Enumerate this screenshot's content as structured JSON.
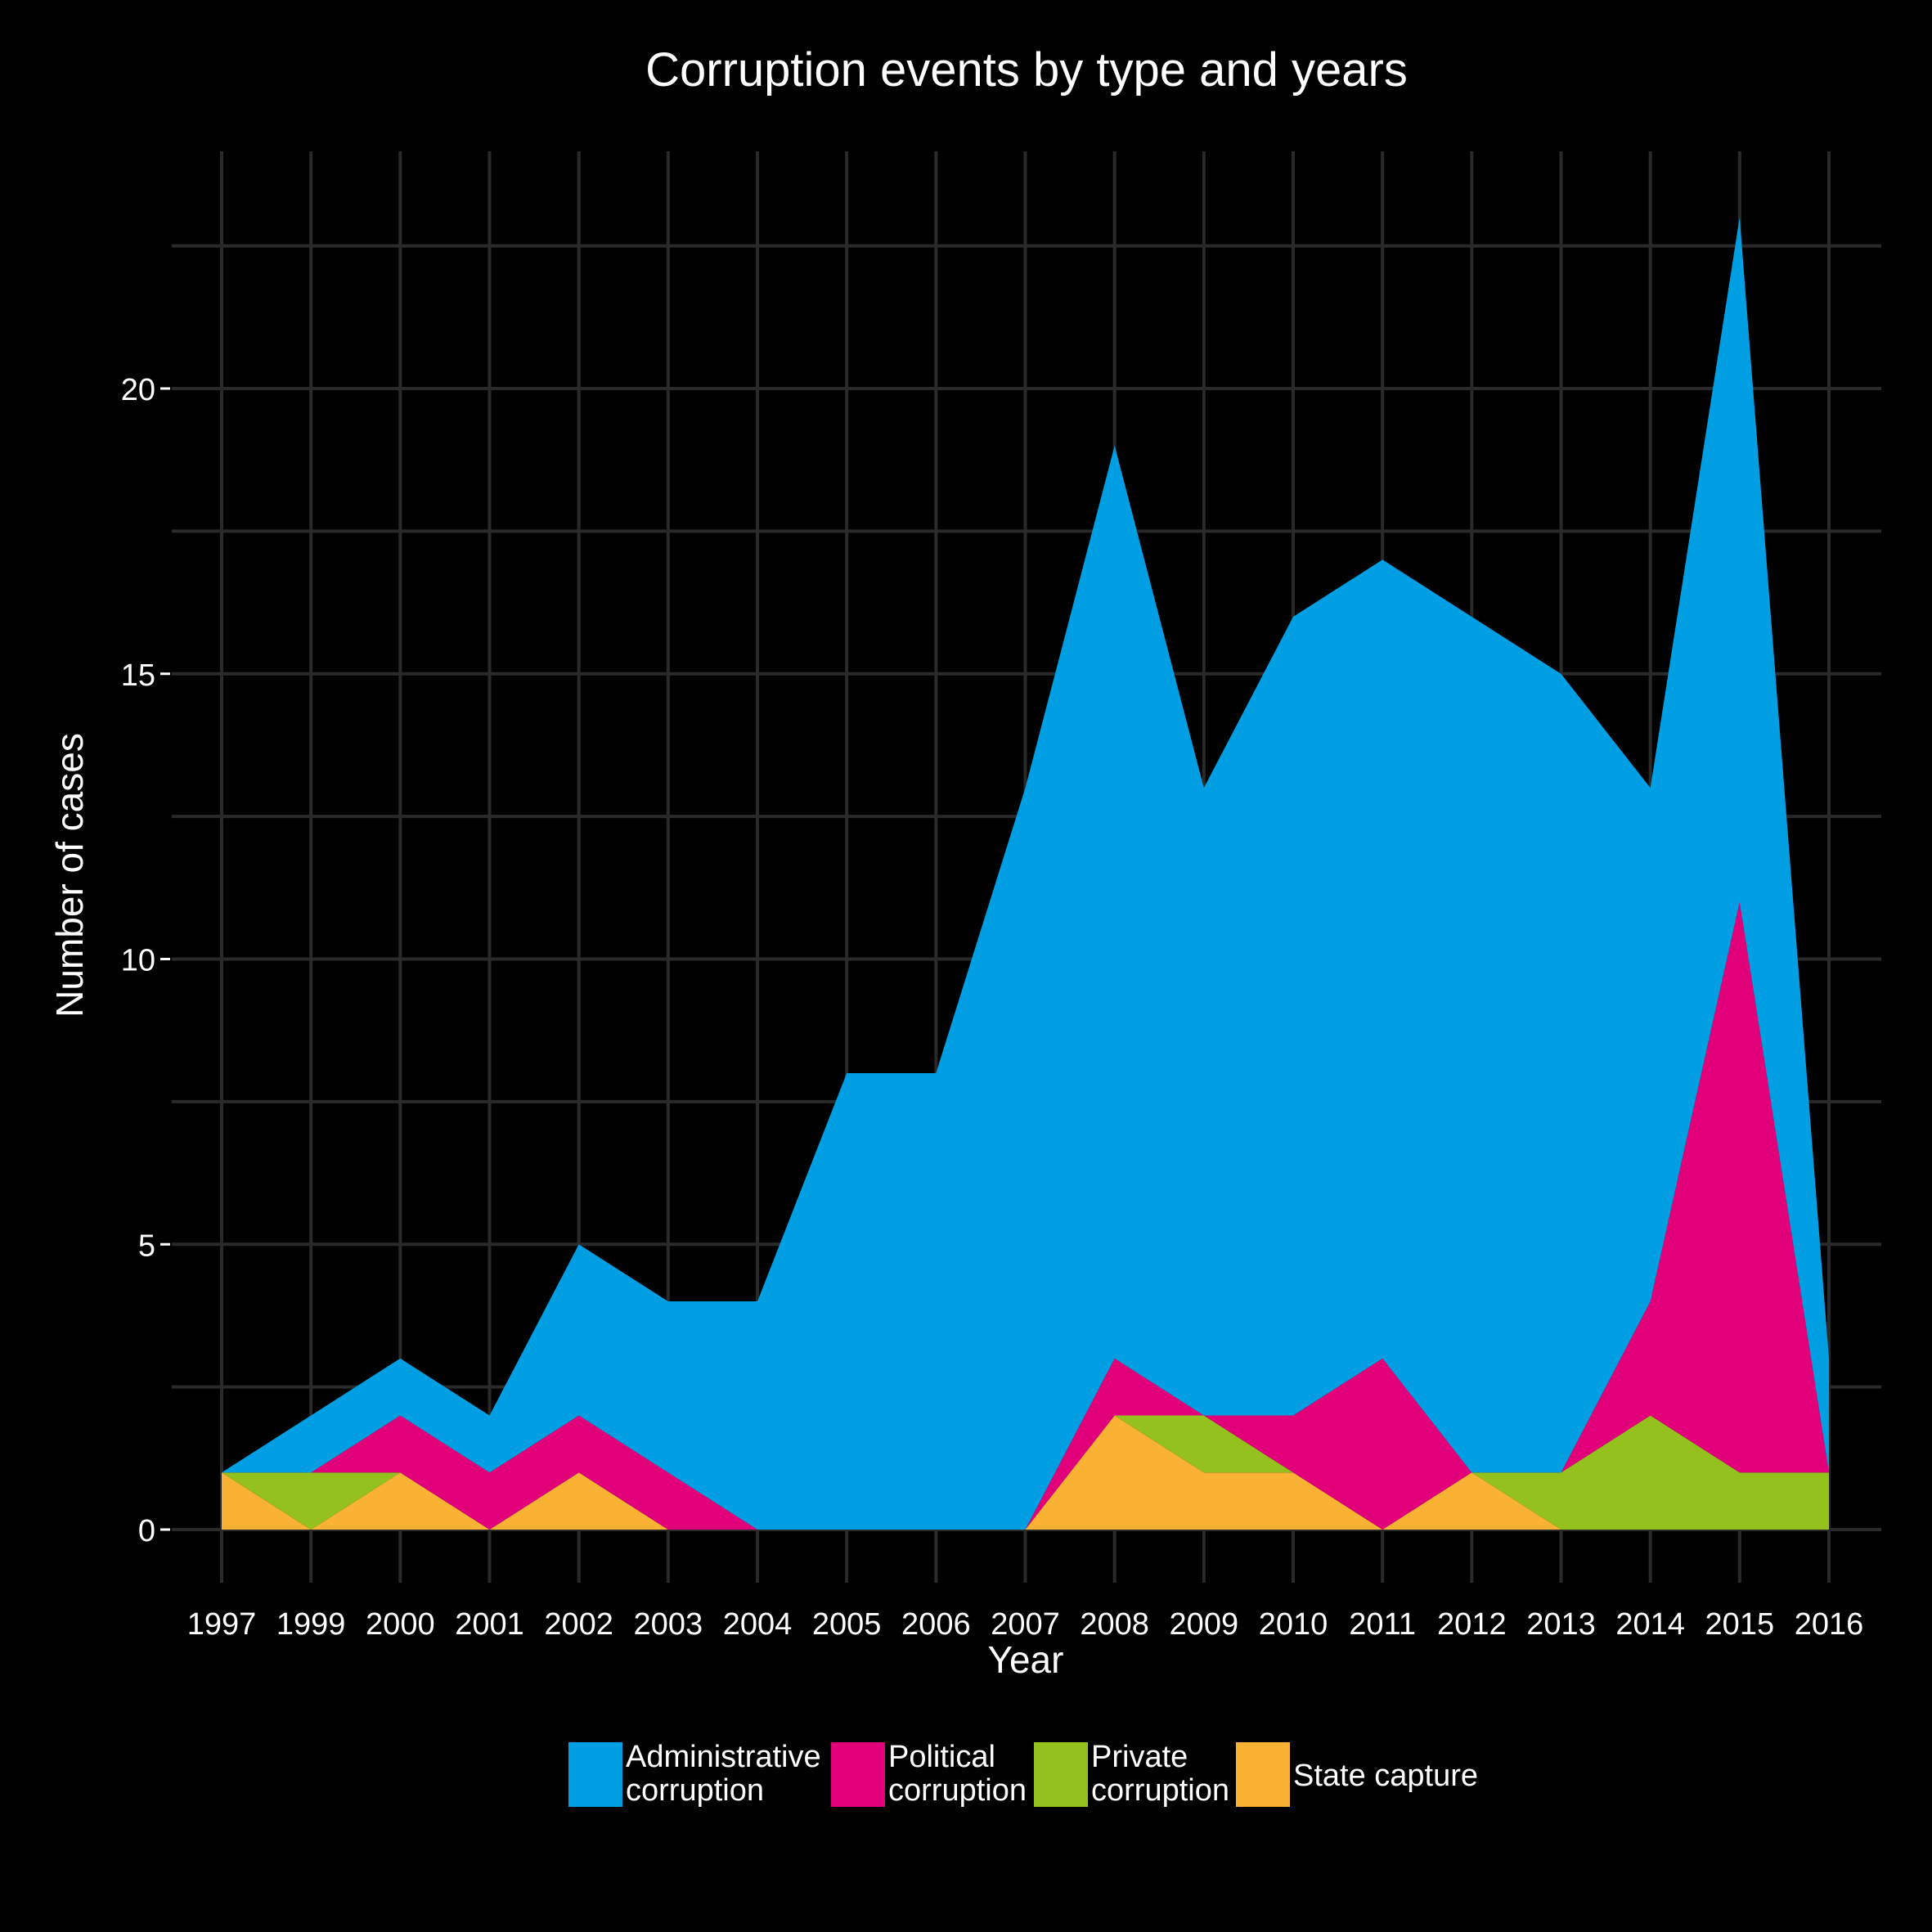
{
  "chart_data": {
    "type": "area",
    "stacked": true,
    "title": "Corruption events by type and years",
    "xlabel": "Year",
    "ylabel": "Number of cases",
    "categories": [
      "1997",
      "1999",
      "2000",
      "2001",
      "2002",
      "2003",
      "2004",
      "2005",
      "2006",
      "2007",
      "2008",
      "2009",
      "2010",
      "2011",
      "2012",
      "2013",
      "2014",
      "2015",
      "2016"
    ],
    "yticks": [
      0,
      5,
      10,
      15,
      20
    ],
    "ylim": [
      -1,
      24
    ],
    "grid": true,
    "legend_position": "bottom",
    "series": [
      {
        "name": "Administrative\ncorruption",
        "color": "#009EE3",
        "values": [
          0,
          1,
          1,
          1,
          3,
          3,
          4,
          8,
          8,
          13,
          16,
          11,
          14,
          14,
          15,
          14,
          9,
          12,
          2
        ]
      },
      {
        "name": "Political\ncorruption",
        "color": "#E2007A",
        "values": [
          0,
          0,
          1,
          1,
          1,
          1,
          0,
          0,
          0,
          0,
          1,
          0,
          1,
          3,
          0,
          0,
          2,
          10,
          0
        ]
      },
      {
        "name": "Private\ncorruption",
        "color": "#95C11F",
        "values": [
          0,
          1,
          0,
          0,
          0,
          0,
          0,
          0,
          0,
          0,
          0,
          1,
          0,
          0,
          0,
          1,
          2,
          1,
          1
        ]
      },
      {
        "name": "State capture",
        "color": "#F9B234",
        "values": [
          1,
          0,
          1,
          0,
          1,
          0,
          0,
          0,
          0,
          0,
          2,
          1,
          1,
          0,
          1,
          0,
          0,
          0,
          0
        ]
      }
    ],
    "colors": {
      "background": "#000000",
      "grid": "#2a2a2a",
      "text": "#ffffff"
    }
  }
}
